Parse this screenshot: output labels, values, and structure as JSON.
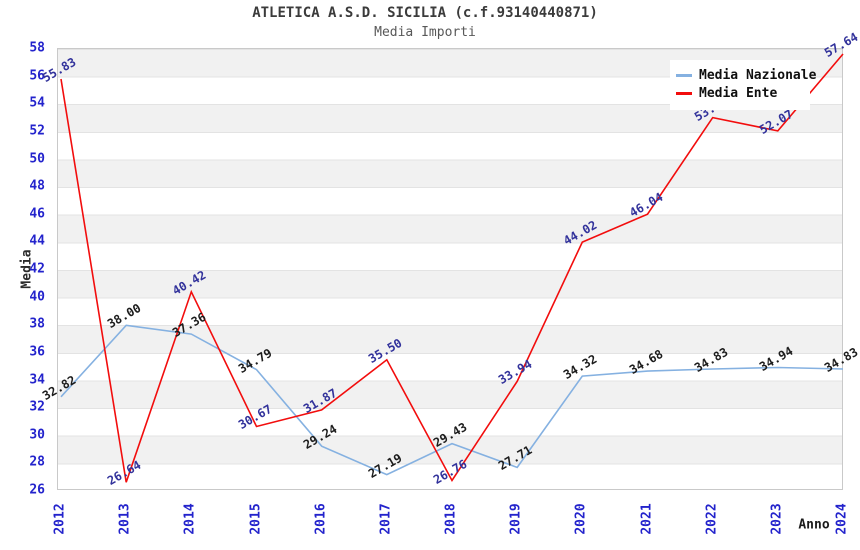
{
  "header": {
    "title": "ATLETICA A.S.D. SICILIA (c.f.93140440871)",
    "subtitle": "Media Importi"
  },
  "axes": {
    "y_label": "Media",
    "x_label": "Anno",
    "y_ticks": [
      26,
      28,
      30,
      32,
      34,
      36,
      38,
      40,
      42,
      44,
      46,
      48,
      50,
      52,
      54,
      56,
      58
    ],
    "tick_color": "#2323cc"
  },
  "legend": {
    "position": "top-right",
    "items": [
      {
        "label": "Media Nazionale",
        "color": "#85b1e1"
      },
      {
        "label": "Media Ente",
        "color": "#f20d0d"
      }
    ]
  },
  "chart_data": {
    "type": "line",
    "title": "ATLETICA A.S.D. SICILIA (c.f.93140440871)",
    "subtitle": "Media Importi",
    "xlabel": "Anno",
    "ylabel": "Media",
    "ylim": [
      26,
      58
    ],
    "x": [
      2012,
      2013,
      2014,
      2015,
      2016,
      2017,
      2018,
      2019,
      2020,
      2021,
      2022,
      2023,
      2024
    ],
    "series": [
      {
        "name": "Media Nazionale",
        "color": "#85b1e1",
        "label_color": "#1c1c1c",
        "values": [
          32.82,
          38.0,
          37.36,
          34.79,
          29.24,
          27.19,
          29.43,
          27.71,
          34.32,
          34.68,
          34.83,
          34.94,
          34.83
        ]
      },
      {
        "name": "Media Ente",
        "color": "#f20d0d",
        "label_color": "#32329b",
        "values": [
          55.83,
          26.64,
          40.42,
          30.67,
          31.87,
          35.5,
          26.76,
          33.94,
          44.02,
          46.04,
          53.03,
          52.07,
          57.64
        ]
      }
    ],
    "grid": "horizontal-bands-every-2-units",
    "legend_position": "top-right",
    "label_occluded": {
      "series": "Media Ente",
      "x": 2022,
      "note": "value label hidden behind legend box"
    }
  }
}
